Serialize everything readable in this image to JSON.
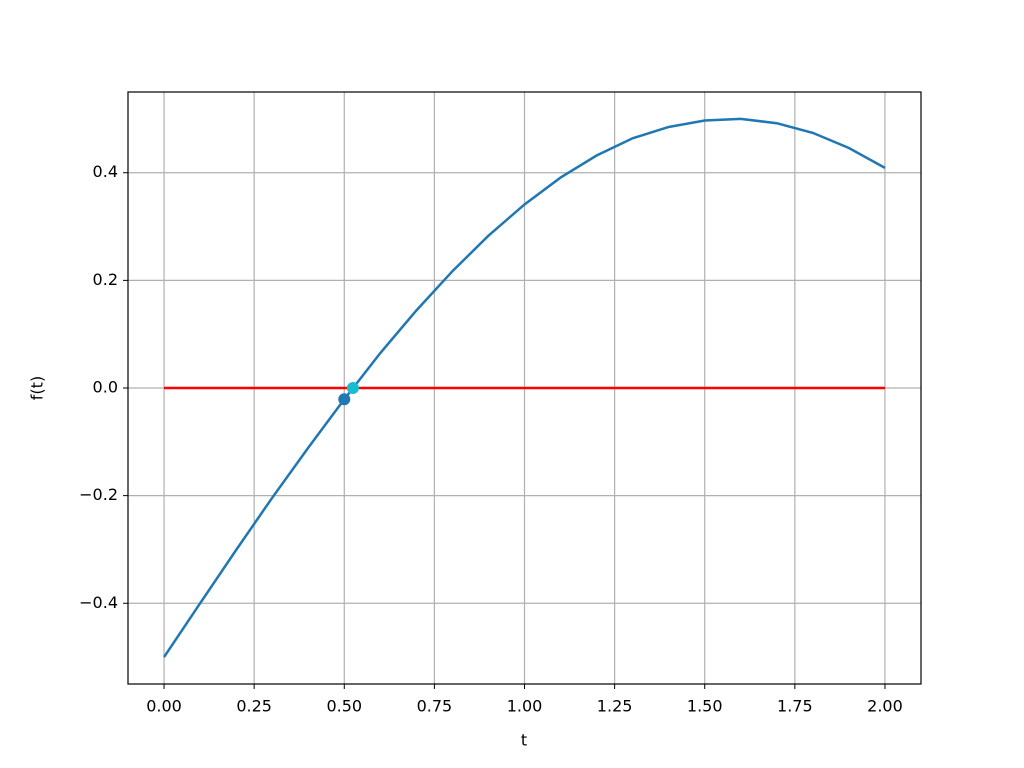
{
  "chart_data": {
    "type": "line",
    "xlabel": "t",
    "ylabel": "f(t)",
    "xlim": [
      -0.1,
      2.1
    ],
    "ylim": [
      -0.55,
      0.55
    ],
    "xticks": [
      {
        "value": 0,
        "label": "0.00"
      },
      {
        "value": 0.25,
        "label": "0.25"
      },
      {
        "value": 0.5,
        "label": "0.50"
      },
      {
        "value": 0.75,
        "label": "0.75"
      },
      {
        "value": 1,
        "label": "1.00"
      },
      {
        "value": 1.25,
        "label": "1.25"
      },
      {
        "value": 1.5,
        "label": "1.50"
      },
      {
        "value": 1.75,
        "label": "1.75"
      },
      {
        "value": 2,
        "label": "2.00"
      }
    ],
    "yticks": [
      {
        "value": -0.4,
        "label": "−0.4"
      },
      {
        "value": -0.2,
        "label": "−0.2"
      },
      {
        "value": 0,
        "label": "0.0"
      },
      0.2,
      0.4
    ],
    "grid": true,
    "series": [
      {
        "type": "line",
        "color": "#1f77b4",
        "x": [
          0,
          0.1,
          0.2,
          0.3,
          0.4,
          0.5,
          0.6,
          0.7,
          0.8,
          0.9,
          1.0,
          1.1,
          1.2,
          1.3,
          1.4,
          1.5,
          1.6,
          1.7,
          1.8,
          1.9,
          2.0
        ],
        "values": [
          -0.5,
          -0.4,
          -0.301,
          -0.204,
          -0.111,
          -0.021,
          0.065,
          0.144,
          0.217,
          0.283,
          0.341,
          0.391,
          0.432,
          0.464,
          0.485,
          0.497,
          0.5,
          0.492,
          0.474,
          0.446,
          0.409
        ]
      },
      {
        "type": "line",
        "color": "#ff0000",
        "x": [
          0,
          2
        ],
        "values": [
          0,
          0
        ]
      },
      {
        "type": "scatter",
        "color": "#1f77b4",
        "x": [
          0.5
        ],
        "values": [
          -0.021
        ]
      },
      {
        "type": "scatter",
        "color": "#17becf",
        "x": [
          0.524
        ],
        "values": [
          0
        ]
      }
    ]
  }
}
